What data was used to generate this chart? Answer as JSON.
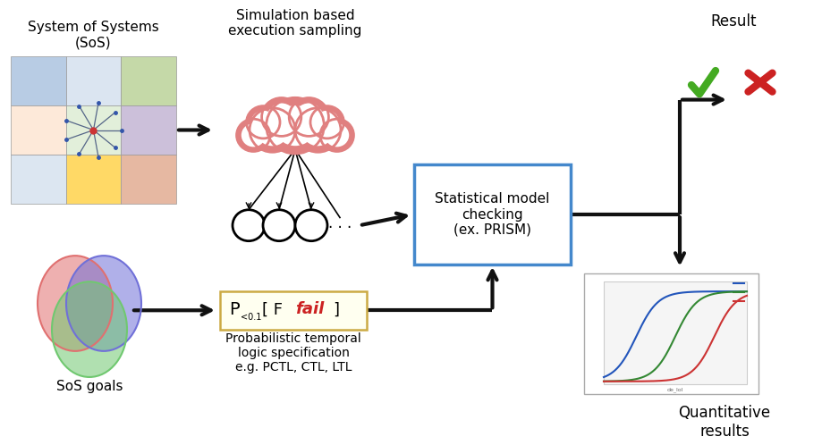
{
  "bg_color": "#ffffff",
  "sos_label": "System of Systems\n(SoS)",
  "sim_label": "Simulation based\nexecution sampling",
  "stat_label": "Statistical model\nchecking\n(ex. PRISM)",
  "result_label": "Result",
  "quant_label": "Quantitative\nresults",
  "goals_label": "SoS goals",
  "prob_label": "Probabilistic temporal\nlogic specification\ne.g. PCTL, CTL, LTL",
  "cloud_color": "#e08080",
  "venn_colors": [
    "#e07070",
    "#70c870",
    "#7070d8"
  ],
  "box_color": "#4488cc",
  "formula_bg": "#fffff0",
  "formula_border": "#ccaa44",
  "arrow_color": "#111111",
  "arrow_lw": 3.0
}
